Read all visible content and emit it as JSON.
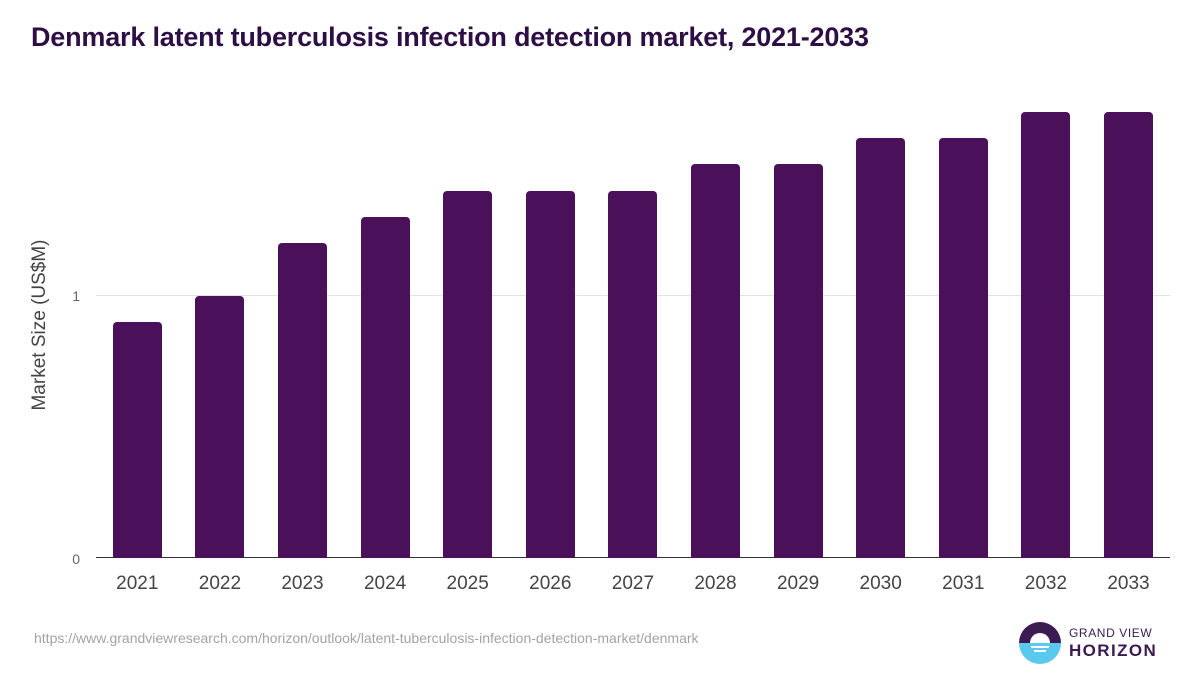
{
  "header": {
    "title": "Denmark latent tuberculosis infection detection market, 2021-2033"
  },
  "chart_data": {
    "type": "bar",
    "title": "Denmark latent tuberculosis infection detection market, 2021-2033",
    "xlabel": "",
    "ylabel": "Market Size (US$M)",
    "categories": [
      "2021",
      "2022",
      "2023",
      "2024",
      "2025",
      "2026",
      "2027",
      "2028",
      "2029",
      "2030",
      "2031",
      "2032",
      "2033"
    ],
    "values": [
      0.9,
      1.0,
      1.2,
      1.3,
      1.4,
      1.4,
      1.4,
      1.5,
      1.5,
      1.6,
      1.6,
      1.7,
      1.7
    ],
    "ylim": [
      0,
      1.78
    ],
    "yticks": [
      "0",
      "1"
    ],
    "grid": true,
    "legend": "none",
    "bar_color": "#4b105a"
  },
  "axis": {
    "y_label": "Market Size (US$M)",
    "y_ticks": [
      "0",
      "1"
    ]
  },
  "footer": {
    "source_url": "https://www.grandviewresearch.com/horizon/outlook/latent-tuberculosis-infection-detection-market/denmark",
    "logo_top": "GRAND VIEW",
    "logo_bottom": "HORIZON"
  },
  "colors": {
    "bar": "#4b105a",
    "title": "#2d0f45",
    "logo_dark": "#3b1b52",
    "logo_light": "#5bc8ee"
  }
}
